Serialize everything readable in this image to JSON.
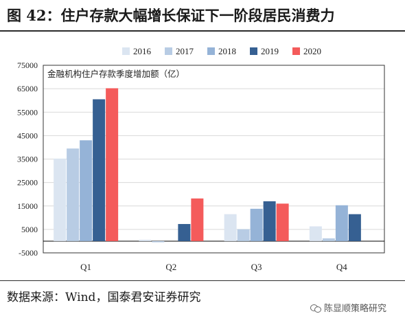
{
  "header": {
    "title": "图 42：住户存款大幅增长保证下一阶段居民消费力"
  },
  "footer": {
    "source": "数据来源：Wind，国泰君安证券研究",
    "watermark": "陈显顺策略研究"
  },
  "chart_data": {
    "type": "bar",
    "title": "",
    "annotation": "金融机构住户存款季度增加额（亿）",
    "xlabel": "",
    "ylabel": "",
    "categories": [
      "Q1",
      "Q2",
      "Q3",
      "Q4"
    ],
    "ylim": [
      -5000,
      75000
    ],
    "yticks": [
      -5000,
      5000,
      15000,
      25000,
      35000,
      45000,
      55000,
      65000,
      75000
    ],
    "grid": true,
    "legend": "top",
    "series": [
      {
        "name": "2016",
        "color": "#dbe5f1",
        "values": [
          35200,
          600,
          11500,
          6300
        ]
      },
      {
        "name": "2017",
        "color": "#b8cce4",
        "values": [
          39500,
          -500,
          5100,
          1200
        ]
      },
      {
        "name": "2018",
        "color": "#95b3d7",
        "values": [
          43000,
          null,
          13800,
          15300
        ]
      },
      {
        "name": "2019",
        "color": "#366092",
        "values": [
          60500,
          7300,
          17000,
          11500
        ]
      },
      {
        "name": "2020",
        "color": "#f45b5b",
        "values": [
          65200,
          18200,
          16000,
          null
        ]
      }
    ]
  }
}
